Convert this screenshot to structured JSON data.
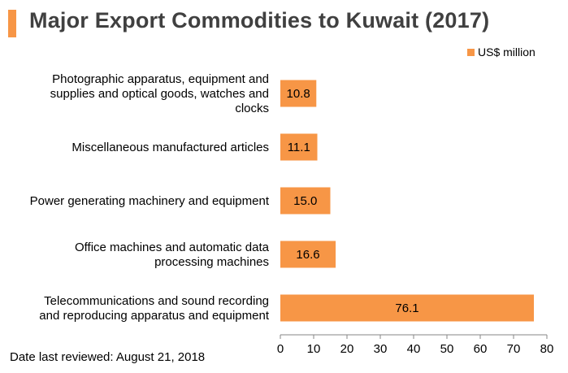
{
  "title": "Major Export Commodities to Kuwait (2017)",
  "footnote": "Date last reviewed: August 21, 2018",
  "colors": {
    "bar": "#f79646",
    "title": "#404040",
    "axis": "#868686"
  },
  "chart_data": {
    "type": "bar",
    "orientation": "horizontal",
    "categories": [
      "Photographic apparatus, equipment and supplies and optical goods, watches and clocks",
      "Miscellaneous manufactured articles",
      "Power generating machinery and equipment",
      "Office machines and automatic data processing machines",
      "Telecommunications and sound recording and reproducing apparatus and equipment"
    ],
    "category_lines": [
      [
        "Photographic apparatus, equipment and",
        "supplies and optical goods, watches and",
        "clocks"
      ],
      [
        "Miscellaneous manufactured articles"
      ],
      [
        "Power generating machinery and equipment"
      ],
      [
        "Office machines and automatic data",
        "processing machines"
      ],
      [
        "Telecommunications and sound recording",
        "and reproducing apparatus and equipment"
      ]
    ],
    "series": [
      {
        "name": "US$ million",
        "values": [
          10.8,
          11.1,
          15.0,
          16.6,
          76.1
        ]
      }
    ],
    "value_labels": [
      "10.8",
      "11.1",
      "15.0",
      "16.6",
      "76.1"
    ],
    "xlim": [
      0,
      80
    ],
    "xticks": [
      0,
      10,
      20,
      30,
      40,
      50,
      60,
      70,
      80
    ],
    "grid": false,
    "legend_position": "top-right"
  }
}
